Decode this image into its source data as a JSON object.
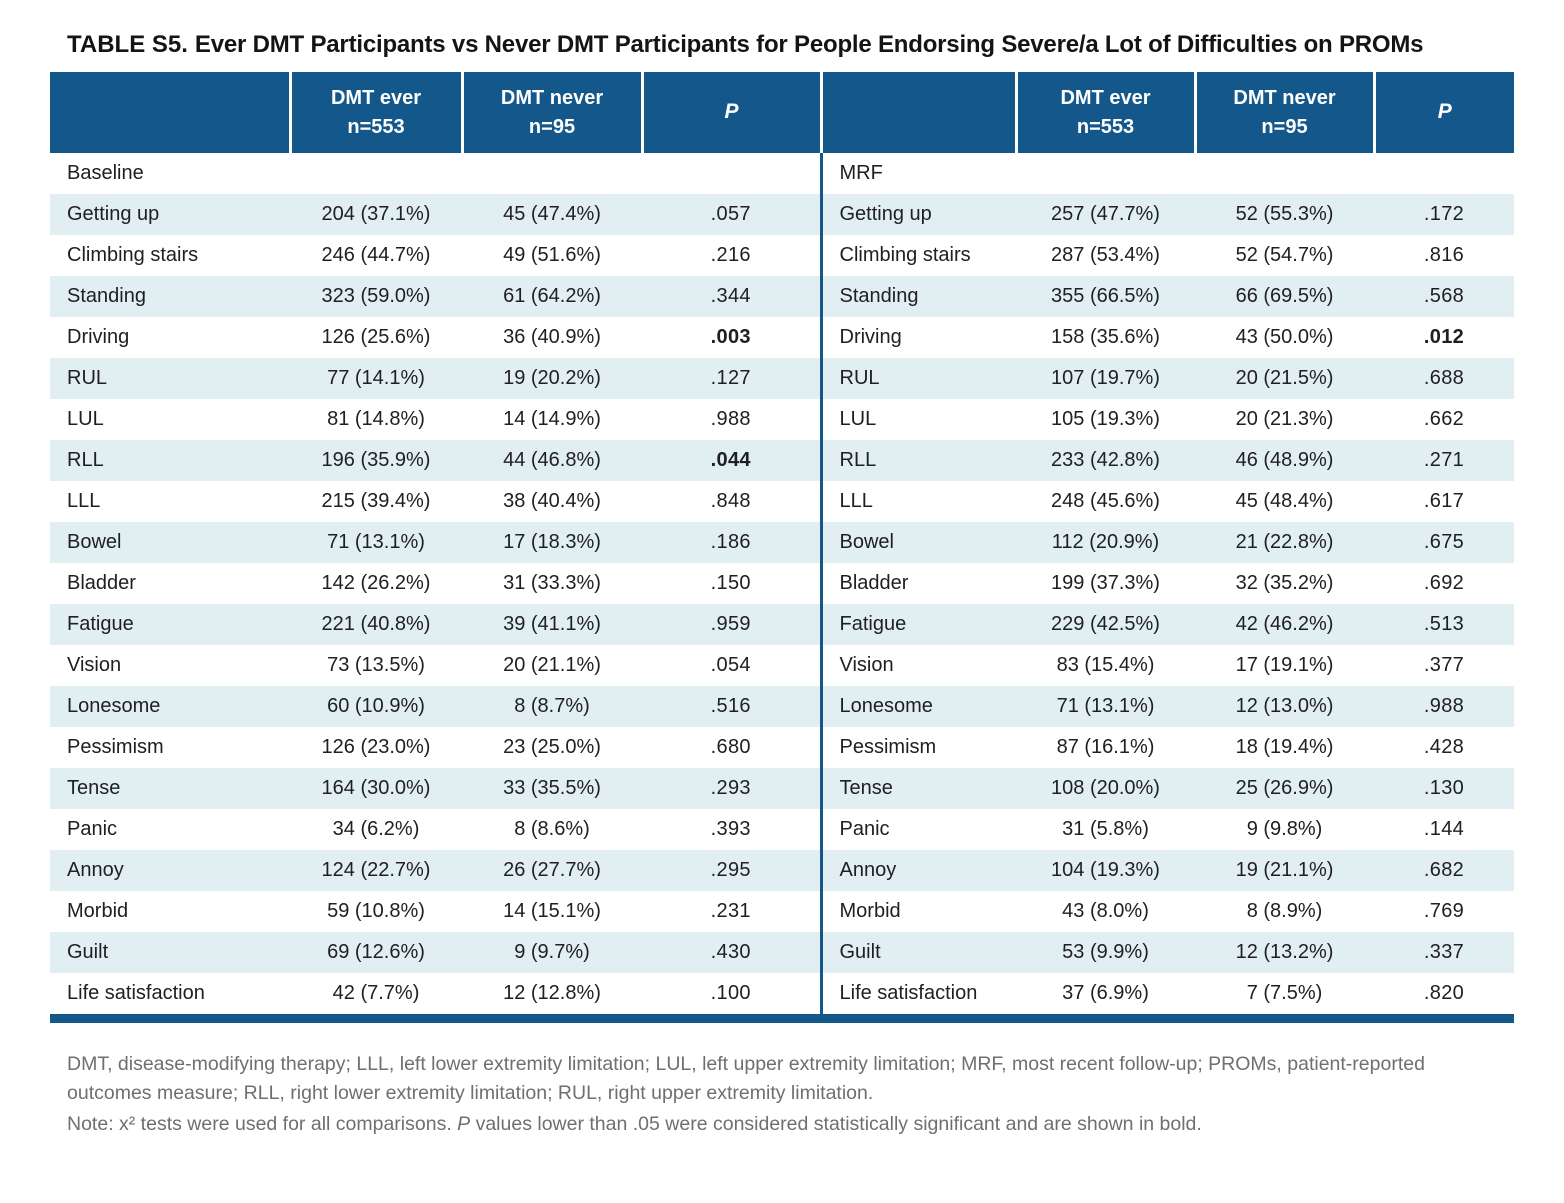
{
  "title": {
    "label": "TABLE S5.",
    "text": "Ever DMT Participants vs Never DMT Participants for People Endorsing Severe/a Lot of Difficulties on PROMs"
  },
  "colors": {
    "header_blue": "#14578b",
    "stripe_light_blue": "#e2eff2",
    "footnote_gray": "#6d6f71"
  },
  "table": {
    "header": {
      "ever_line1": "DMT ever",
      "ever_line2": "n=553",
      "never_line1": "DMT never",
      "never_line2": "n=95",
      "p": "P"
    },
    "section_left": "Baseline",
    "section_right": "MRF",
    "rows": [
      {
        "label": "Getting up",
        "baseline": {
          "ever": "204 (37.1%)",
          "never": "45 (47.4%)",
          "p": ".057",
          "p_bold": false
        },
        "mrf": {
          "ever": "257 (47.7%)",
          "never": "52 (55.3%)",
          "p": ".172",
          "p_bold": false
        }
      },
      {
        "label": "Climbing stairs",
        "baseline": {
          "ever": "246 (44.7%)",
          "never": "49 (51.6%)",
          "p": ".216",
          "p_bold": false
        },
        "mrf": {
          "ever": "287 (53.4%)",
          "never": "52 (54.7%)",
          "p": ".816",
          "p_bold": false
        }
      },
      {
        "label": "Standing",
        "baseline": {
          "ever": "323 (59.0%)",
          "never": "61 (64.2%)",
          "p": ".344",
          "p_bold": false
        },
        "mrf": {
          "ever": "355 (66.5%)",
          "never": "66 (69.5%)",
          "p": ".568",
          "p_bold": false
        }
      },
      {
        "label": "Driving",
        "baseline": {
          "ever": "126 (25.6%)",
          "never": "36 (40.9%)",
          "p": ".003",
          "p_bold": true
        },
        "mrf": {
          "ever": "158 (35.6%)",
          "never": "43 (50.0%)",
          "p": ".012",
          "p_bold": true
        }
      },
      {
        "label": "RUL",
        "baseline": {
          "ever": "77 (14.1%)",
          "never": "19 (20.2%)",
          "p": ".127",
          "p_bold": false
        },
        "mrf": {
          "ever": "107 (19.7%)",
          "never": "20 (21.5%)",
          "p": ".688",
          "p_bold": false
        }
      },
      {
        "label": "LUL",
        "baseline": {
          "ever": "81 (14.8%)",
          "never": "14 (14.9%)",
          "p": ".988",
          "p_bold": false
        },
        "mrf": {
          "ever": "105 (19.3%)",
          "never": "20 (21.3%)",
          "p": ".662",
          "p_bold": false
        }
      },
      {
        "label": "RLL",
        "baseline": {
          "ever": "196 (35.9%)",
          "never": "44 (46.8%)",
          "p": ".044",
          "p_bold": true
        },
        "mrf": {
          "ever": "233 (42.8%)",
          "never": "46 (48.9%)",
          "p": ".271",
          "p_bold": false
        }
      },
      {
        "label": "LLL",
        "baseline": {
          "ever": "215 (39.4%)",
          "never": "38 (40.4%)",
          "p": ".848",
          "p_bold": false
        },
        "mrf": {
          "ever": "248 (45.6%)",
          "never": "45 (48.4%)",
          "p": ".617",
          "p_bold": false
        }
      },
      {
        "label": "Bowel",
        "baseline": {
          "ever": "71 (13.1%)",
          "never": "17 (18.3%)",
          "p": ".186",
          "p_bold": false
        },
        "mrf": {
          "ever": "112 (20.9%)",
          "never": "21 (22.8%)",
          "p": ".675",
          "p_bold": false
        }
      },
      {
        "label": "Bladder",
        "baseline": {
          "ever": "142 (26.2%)",
          "never": "31 (33.3%)",
          "p": ".150",
          "p_bold": false
        },
        "mrf": {
          "ever": "199 (37.3%)",
          "never": "32 (35.2%)",
          "p": ".692",
          "p_bold": false
        }
      },
      {
        "label": "Fatigue",
        "baseline": {
          "ever": "221 (40.8%)",
          "never": "39 (41.1%)",
          "p": ".959",
          "p_bold": false
        },
        "mrf": {
          "ever": "229 (42.5%)",
          "never": "42 (46.2%)",
          "p": ".513",
          "p_bold": false
        }
      },
      {
        "label": "Vision",
        "baseline": {
          "ever": "73 (13.5%)",
          "never": "20 (21.1%)",
          "p": ".054",
          "p_bold": false
        },
        "mrf": {
          "ever": "83 (15.4%)",
          "never": "17 (19.1%)",
          "p": ".377",
          "p_bold": false
        }
      },
      {
        "label": "Lonesome",
        "baseline": {
          "ever": "60 (10.9%)",
          "never": "8 (8.7%)",
          "p": ".516",
          "p_bold": false
        },
        "mrf": {
          "ever": "71 (13.1%)",
          "never": "12 (13.0%)",
          "p": ".988",
          "p_bold": false
        }
      },
      {
        "label": "Pessimism",
        "baseline": {
          "ever": "126 (23.0%)",
          "never": "23 (25.0%)",
          "p": ".680",
          "p_bold": false
        },
        "mrf": {
          "ever": "87 (16.1%)",
          "never": "18 (19.4%)",
          "p": ".428",
          "p_bold": false
        }
      },
      {
        "label": "Tense",
        "baseline": {
          "ever": "164 (30.0%)",
          "never": "33 (35.5%)",
          "p": ".293",
          "p_bold": false
        },
        "mrf": {
          "ever": "108 (20.0%)",
          "never": "25 (26.9%)",
          "p": ".130",
          "p_bold": false
        }
      },
      {
        "label": "Panic",
        "baseline": {
          "ever": "34 (6.2%)",
          "never": "8 (8.6%)",
          "p": ".393",
          "p_bold": false
        },
        "mrf": {
          "ever": "31 (5.8%)",
          "never": "9 (9.8%)",
          "p": ".144",
          "p_bold": false
        }
      },
      {
        "label": "Annoy",
        "baseline": {
          "ever": "124 (22.7%)",
          "never": "26 (27.7%)",
          "p": ".295",
          "p_bold": false
        },
        "mrf": {
          "ever": "104 (19.3%)",
          "never": "19 (21.1%)",
          "p": ".682",
          "p_bold": false
        }
      },
      {
        "label": "Morbid",
        "baseline": {
          "ever": "59 (10.8%)",
          "never": "14 (15.1%)",
          "p": ".231",
          "p_bold": false
        },
        "mrf": {
          "ever": "43 (8.0%)",
          "never": "8 (8.9%)",
          "p": ".769",
          "p_bold": false
        }
      },
      {
        "label": "Guilt",
        "baseline": {
          "ever": "69 (12.6%)",
          "never": "9 (9.7%)",
          "p": ".430",
          "p_bold": false
        },
        "mrf": {
          "ever": "53 (9.9%)",
          "never": "12 (13.2%)",
          "p": ".337",
          "p_bold": false
        }
      },
      {
        "label": "Life satisfaction",
        "baseline": {
          "ever": "42 (7.7%)",
          "never": "12 (12.8%)",
          "p": ".100",
          "p_bold": false
        },
        "mrf": {
          "ever": "37 (6.9%)",
          "never": "7 (7.5%)",
          "p": ".820",
          "p_bold": false
        }
      }
    ]
  },
  "footnotes": {
    "abbreviations": "DMT, disease-modifying therapy; LLL, left lower extremity limitation; LUL, left upper extremity limitation; MRF, most recent follow-up; PROMs, patient-reported outcomes measure; RLL, right lower extremity limitation; RUL, right upper extremity limitation.",
    "note_prefix": "Note: x² tests were used for all comparisons. ",
    "note_p": "P",
    "note_suffix": " values lower than .05 were considered statistically significant and are shown in bold."
  }
}
